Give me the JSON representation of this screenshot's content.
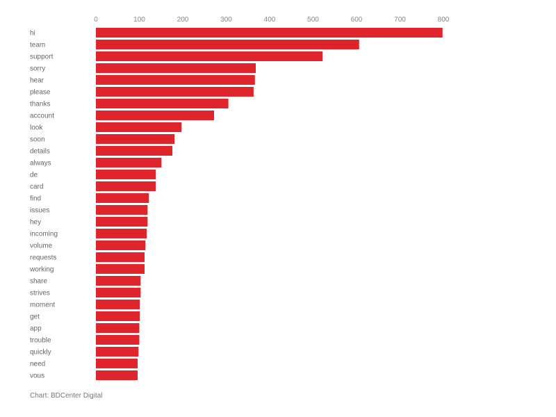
{
  "chart_data": {
    "type": "bar",
    "orientation": "horizontal",
    "categories": [
      "hi",
      "team",
      "support",
      "sorry",
      "hear",
      "please",
      "thanks",
      "account",
      "look",
      "soon",
      "details",
      "always",
      "de",
      "card",
      "find",
      "issues",
      "hey",
      "incoming",
      "volume",
      "requests",
      "working",
      "share",
      "strives",
      "moment",
      "get",
      "app",
      "trouble",
      "quickly",
      "need",
      "vous"
    ],
    "values": [
      798,
      606,
      522,
      368,
      366,
      363,
      305,
      272,
      197,
      181,
      176,
      151,
      138,
      138,
      122,
      119,
      119,
      117,
      114,
      112,
      112,
      103,
      103,
      101,
      101,
      100,
      100,
      98,
      96,
      96
    ],
    "xlim": [
      0,
      800
    ],
    "xticks": [
      0,
      100,
      200,
      300,
      400,
      500,
      600,
      700,
      800
    ],
    "x_axis_position": "top",
    "grid": false,
    "bar_color": "#e0242b"
  },
  "footer": {
    "credit": "Chart: BDCenter Digital"
  }
}
